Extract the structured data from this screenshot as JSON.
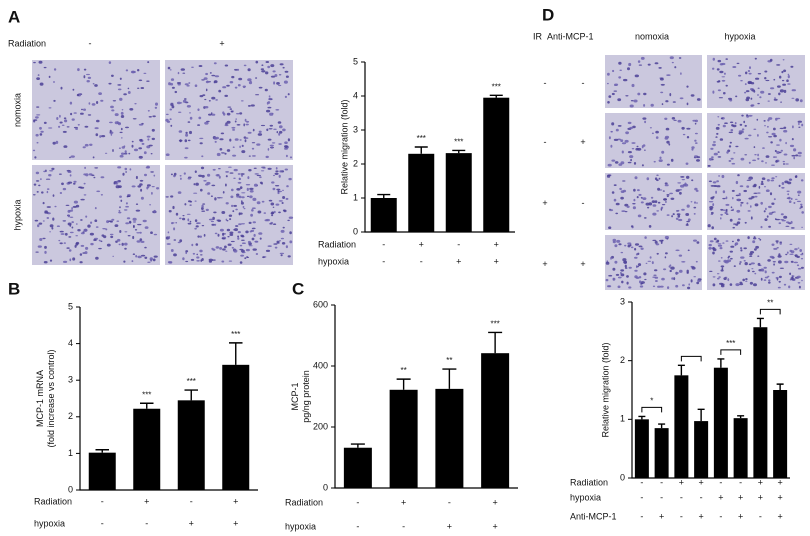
{
  "panel_letters": [
    "A",
    "B",
    "C",
    "D"
  ],
  "panel_a_images": {
    "column_header": "Radiation",
    "columns": [
      "-",
      "+"
    ],
    "rows": [
      "nomoxia",
      "hypoxia"
    ]
  },
  "panel_d_images": {
    "row_headers": [
      "IR",
      "Anti-MCP-1"
    ],
    "columns": [
      "nomoxia",
      "hypoxia"
    ],
    "rows": [
      [
        "-",
        "-"
      ],
      [
        "-",
        "+"
      ],
      [
        "+",
        "-"
      ],
      [
        "+",
        "+"
      ]
    ]
  },
  "chart_data": [
    {
      "type": "bar",
      "ylabel": [
        "Relative migration (fold)"
      ],
      "ylim": [
        0,
        5
      ],
      "yticks": [
        0,
        1,
        2,
        3,
        4,
        5
      ],
      "color": "#000000",
      "values": [
        1.0,
        2.3,
        2.32,
        3.95
      ],
      "errors": [
        0.1,
        0.2,
        0.08,
        0.07
      ],
      "significance": [
        null,
        "***",
        "***",
        "***"
      ],
      "conditions": [
        {
          "name": "Radiation",
          "values": [
            "-",
            "+",
            "-",
            "+"
          ]
        },
        {
          "name": "hypoxia",
          "values": [
            "-",
            "-",
            "+",
            "+"
          ]
        }
      ]
    },
    {
      "type": "bar",
      "ylabel": [
        "MCP-1 mRNA",
        "(fold increase vs control)"
      ],
      "ylim": [
        0,
        5
      ],
      "yticks": [
        0,
        1,
        2,
        3,
        4,
        5
      ],
      "color": "#000000",
      "values": [
        1.02,
        2.22,
        2.45,
        3.42
      ],
      "errors": [
        0.08,
        0.15,
        0.28,
        0.6
      ],
      "significance": [
        null,
        "***",
        "***",
        "***"
      ],
      "conditions": [
        {
          "name": "Radiation",
          "values": [
            "-",
            "+",
            "-",
            "+"
          ]
        },
        {
          "name": "hypoxia",
          "values": [
            "-",
            "-",
            "+",
            "+"
          ]
        }
      ]
    },
    {
      "type": "bar",
      "ylabel": [
        "MCP-1",
        "pg/ng protein"
      ],
      "ylim": [
        0,
        600
      ],
      "yticks": [
        0,
        200,
        400,
        600
      ],
      "color": "#000000",
      "values": [
        132,
        322,
        325,
        442
      ],
      "errors": [
        12,
        35,
        65,
        68
      ],
      "significance": [
        null,
        "**",
        "**",
        "***"
      ],
      "conditions": [
        {
          "name": "Radiation",
          "values": [
            "-",
            "+",
            "-",
            "+"
          ]
        },
        {
          "name": "hypoxia",
          "values": [
            "-",
            "-",
            "+",
            "+"
          ]
        }
      ]
    },
    {
      "type": "bar",
      "ylabel": [
        "Relative migration (fold)"
      ],
      "ylim": [
        0,
        3
      ],
      "yticks": [
        0,
        1,
        2,
        3
      ],
      "color": "#000000",
      "values": [
        1.0,
        0.85,
        1.75,
        0.97,
        1.88,
        1.02,
        2.57,
        1.5
      ],
      "errors": [
        0.05,
        0.07,
        0.17,
        0.2,
        0.15,
        0.04,
        0.15,
        0.1
      ],
      "bracket_labels": [
        "*",
        null,
        "***",
        "**"
      ],
      "conditions": [
        {
          "name": "Radiation",
          "values": [
            "-",
            "-",
            "+",
            "+",
            "-",
            "-",
            "+",
            "+"
          ]
        },
        {
          "name": "hypoxia",
          "values": [
            "-",
            "-",
            "-",
            "-",
            "+",
            "+",
            "+",
            "+"
          ]
        },
        {
          "name": "Anti-MCP-1",
          "values": [
            "-",
            "+",
            "-",
            "+",
            "-",
            "+",
            "-",
            "+"
          ]
        }
      ]
    }
  ]
}
